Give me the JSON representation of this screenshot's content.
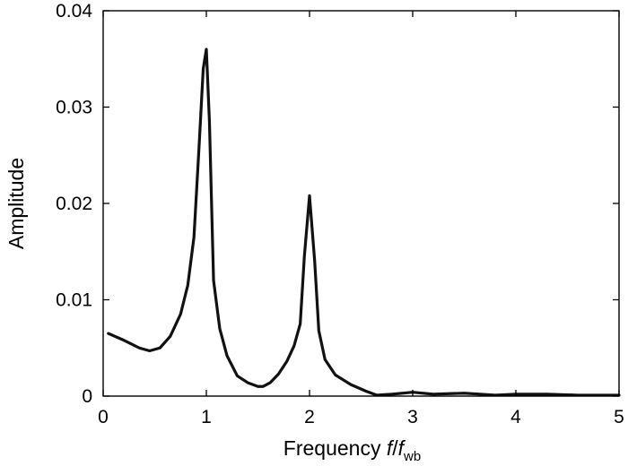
{
  "chart_data": {
    "type": "line",
    "title": "",
    "xlabel": {
      "prefix": "Frequency ",
      "var": "f",
      "slash": "/",
      "var2": "f",
      "sub": "wb"
    },
    "ylabel": "Amplitude",
    "xlim": [
      0,
      5
    ],
    "ylim": [
      0,
      0.04
    ],
    "xticks": [
      0,
      1,
      2,
      3,
      4,
      5
    ],
    "yticks": [
      0,
      0.01,
      0.02,
      0.03,
      0.04
    ],
    "xtick_labels": [
      "0",
      "1",
      "2",
      "3",
      "4",
      "5"
    ],
    "ytick_labels": [
      "0",
      "0.01",
      "0.02",
      "0.03",
      "0.04"
    ],
    "grid": false,
    "line_color": "#111111",
    "series": [
      {
        "x": [
          0.05,
          0.2,
          0.35,
          0.45,
          0.55,
          0.65,
          0.75,
          0.82,
          0.88,
          0.93,
          0.97,
          1.0,
          1.03,
          1.07,
          1.13,
          1.2,
          1.3,
          1.4,
          1.5,
          1.55,
          1.62,
          1.7,
          1.78,
          1.85,
          1.91,
          1.95,
          2.0,
          2.05,
          2.09,
          2.15,
          2.25,
          2.4,
          2.55,
          2.65,
          2.8,
          3.0,
          3.2,
          3.5,
          3.8,
          4.0,
          4.3,
          4.6,
          5.0
        ],
        "y": [
          0.0065,
          0.0058,
          0.005,
          0.0047,
          0.005,
          0.0062,
          0.0085,
          0.0115,
          0.0165,
          0.026,
          0.034,
          0.036,
          0.0285,
          0.012,
          0.007,
          0.0042,
          0.0021,
          0.0014,
          0.001,
          0.001,
          0.0014,
          0.0023,
          0.0036,
          0.0052,
          0.0075,
          0.0145,
          0.0208,
          0.014,
          0.0068,
          0.0038,
          0.0022,
          0.0012,
          0.0005,
          0.0001,
          0.0002,
          0.0004,
          0.0002,
          0.0003,
          0.0001,
          0.0002,
          0.0002,
          0.0001,
          0.0001
        ]
      }
    ]
  }
}
